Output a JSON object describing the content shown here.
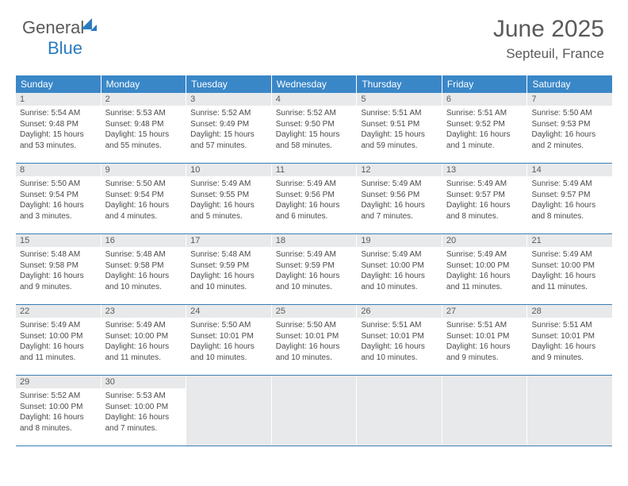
{
  "logo": {
    "part1": "General",
    "part2": "Blue"
  },
  "title": "June 2025",
  "location": "Septeuil, France",
  "colors": {
    "header_bg": "#3a87c8",
    "header_text": "#ffffff",
    "daynum_bg": "#e8e9ea",
    "text": "#5a5a5a",
    "body_text": "#4a4a4a",
    "row_border": "#3a7fb5",
    "brand_blue": "#2b7bbf"
  },
  "day_headers": [
    "Sunday",
    "Monday",
    "Tuesday",
    "Wednesday",
    "Thursday",
    "Friday",
    "Saturday"
  ],
  "weeks": [
    [
      {
        "n": "1",
        "sr": "Sunrise: 5:54 AM",
        "ss": "Sunset: 9:48 PM",
        "dl": "Daylight: 15 hours and 53 minutes."
      },
      {
        "n": "2",
        "sr": "Sunrise: 5:53 AM",
        "ss": "Sunset: 9:48 PM",
        "dl": "Daylight: 15 hours and 55 minutes."
      },
      {
        "n": "3",
        "sr": "Sunrise: 5:52 AM",
        "ss": "Sunset: 9:49 PM",
        "dl": "Daylight: 15 hours and 57 minutes."
      },
      {
        "n": "4",
        "sr": "Sunrise: 5:52 AM",
        "ss": "Sunset: 9:50 PM",
        "dl": "Daylight: 15 hours and 58 minutes."
      },
      {
        "n": "5",
        "sr": "Sunrise: 5:51 AM",
        "ss": "Sunset: 9:51 PM",
        "dl": "Daylight: 15 hours and 59 minutes."
      },
      {
        "n": "6",
        "sr": "Sunrise: 5:51 AM",
        "ss": "Sunset: 9:52 PM",
        "dl": "Daylight: 16 hours and 1 minute."
      },
      {
        "n": "7",
        "sr": "Sunrise: 5:50 AM",
        "ss": "Sunset: 9:53 PM",
        "dl": "Daylight: 16 hours and 2 minutes."
      }
    ],
    [
      {
        "n": "8",
        "sr": "Sunrise: 5:50 AM",
        "ss": "Sunset: 9:54 PM",
        "dl": "Daylight: 16 hours and 3 minutes."
      },
      {
        "n": "9",
        "sr": "Sunrise: 5:50 AM",
        "ss": "Sunset: 9:54 PM",
        "dl": "Daylight: 16 hours and 4 minutes."
      },
      {
        "n": "10",
        "sr": "Sunrise: 5:49 AM",
        "ss": "Sunset: 9:55 PM",
        "dl": "Daylight: 16 hours and 5 minutes."
      },
      {
        "n": "11",
        "sr": "Sunrise: 5:49 AM",
        "ss": "Sunset: 9:56 PM",
        "dl": "Daylight: 16 hours and 6 minutes."
      },
      {
        "n": "12",
        "sr": "Sunrise: 5:49 AM",
        "ss": "Sunset: 9:56 PM",
        "dl": "Daylight: 16 hours and 7 minutes."
      },
      {
        "n": "13",
        "sr": "Sunrise: 5:49 AM",
        "ss": "Sunset: 9:57 PM",
        "dl": "Daylight: 16 hours and 8 minutes."
      },
      {
        "n": "14",
        "sr": "Sunrise: 5:49 AM",
        "ss": "Sunset: 9:57 PM",
        "dl": "Daylight: 16 hours and 8 minutes."
      }
    ],
    [
      {
        "n": "15",
        "sr": "Sunrise: 5:48 AM",
        "ss": "Sunset: 9:58 PM",
        "dl": "Daylight: 16 hours and 9 minutes."
      },
      {
        "n": "16",
        "sr": "Sunrise: 5:48 AM",
        "ss": "Sunset: 9:58 PM",
        "dl": "Daylight: 16 hours and 10 minutes."
      },
      {
        "n": "17",
        "sr": "Sunrise: 5:48 AM",
        "ss": "Sunset: 9:59 PM",
        "dl": "Daylight: 16 hours and 10 minutes."
      },
      {
        "n": "18",
        "sr": "Sunrise: 5:49 AM",
        "ss": "Sunset: 9:59 PM",
        "dl": "Daylight: 16 hours and 10 minutes."
      },
      {
        "n": "19",
        "sr": "Sunrise: 5:49 AM",
        "ss": "Sunset: 10:00 PM",
        "dl": "Daylight: 16 hours and 10 minutes."
      },
      {
        "n": "20",
        "sr": "Sunrise: 5:49 AM",
        "ss": "Sunset: 10:00 PM",
        "dl": "Daylight: 16 hours and 11 minutes."
      },
      {
        "n": "21",
        "sr": "Sunrise: 5:49 AM",
        "ss": "Sunset: 10:00 PM",
        "dl": "Daylight: 16 hours and 11 minutes."
      }
    ],
    [
      {
        "n": "22",
        "sr": "Sunrise: 5:49 AM",
        "ss": "Sunset: 10:00 PM",
        "dl": "Daylight: 16 hours and 11 minutes."
      },
      {
        "n": "23",
        "sr": "Sunrise: 5:49 AM",
        "ss": "Sunset: 10:00 PM",
        "dl": "Daylight: 16 hours and 11 minutes."
      },
      {
        "n": "24",
        "sr": "Sunrise: 5:50 AM",
        "ss": "Sunset: 10:01 PM",
        "dl": "Daylight: 16 hours and 10 minutes."
      },
      {
        "n": "25",
        "sr": "Sunrise: 5:50 AM",
        "ss": "Sunset: 10:01 PM",
        "dl": "Daylight: 16 hours and 10 minutes."
      },
      {
        "n": "26",
        "sr": "Sunrise: 5:51 AM",
        "ss": "Sunset: 10:01 PM",
        "dl": "Daylight: 16 hours and 10 minutes."
      },
      {
        "n": "27",
        "sr": "Sunrise: 5:51 AM",
        "ss": "Sunset: 10:01 PM",
        "dl": "Daylight: 16 hours and 9 minutes."
      },
      {
        "n": "28",
        "sr": "Sunrise: 5:51 AM",
        "ss": "Sunset: 10:01 PM",
        "dl": "Daylight: 16 hours and 9 minutes."
      }
    ],
    [
      {
        "n": "29",
        "sr": "Sunrise: 5:52 AM",
        "ss": "Sunset: 10:00 PM",
        "dl": "Daylight: 16 hours and 8 minutes."
      },
      {
        "n": "30",
        "sr": "Sunrise: 5:53 AM",
        "ss": "Sunset: 10:00 PM",
        "dl": "Daylight: 16 hours and 7 minutes."
      },
      null,
      null,
      null,
      null,
      null
    ]
  ]
}
